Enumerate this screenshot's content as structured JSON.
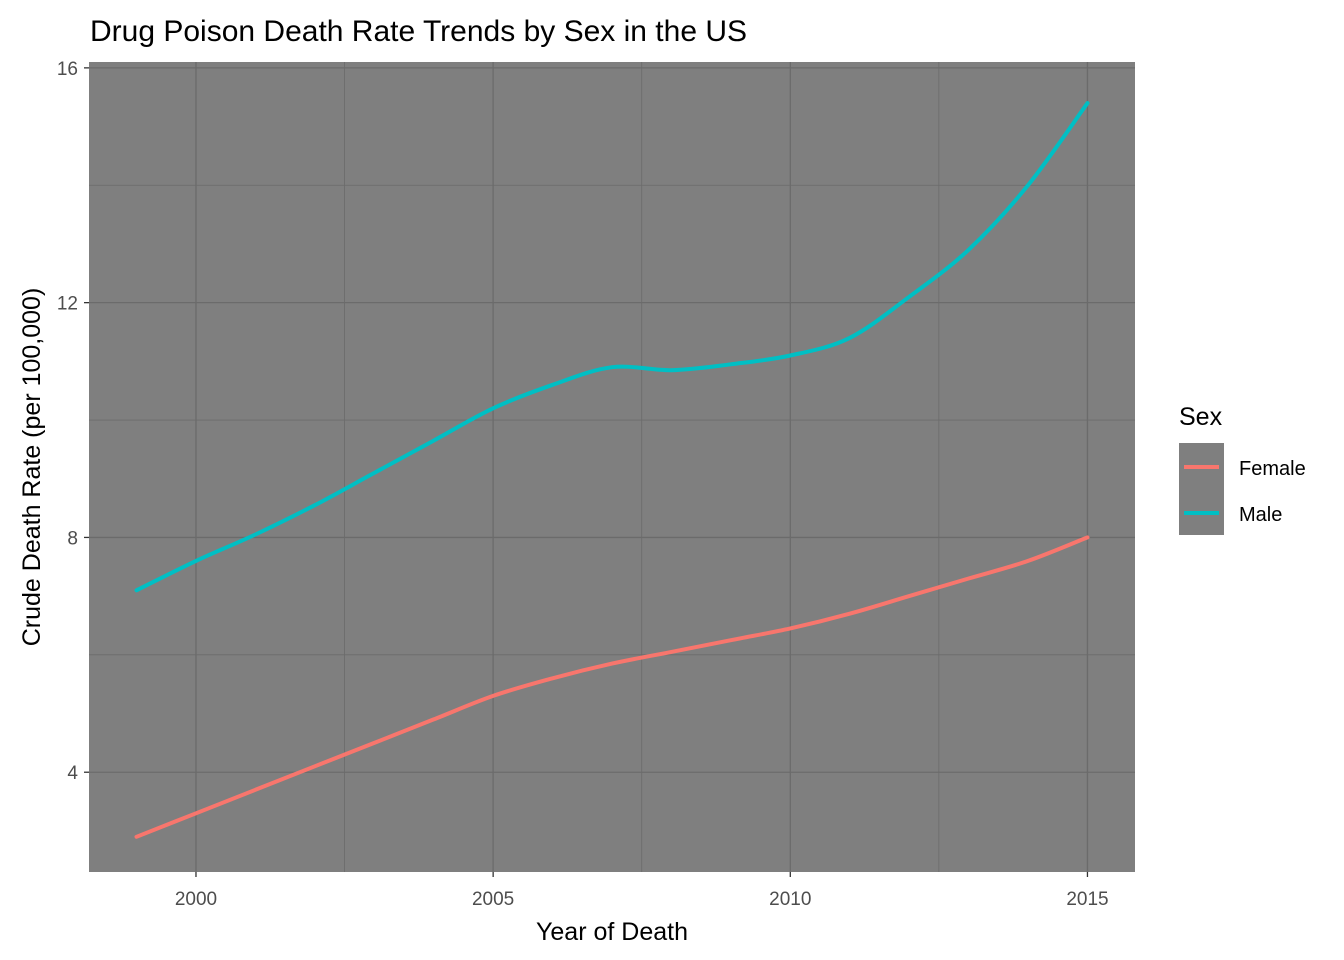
{
  "chart_data": {
    "type": "line",
    "title": "Drug Poison Death Rate Trends by Sex in the US",
    "xlabel": "Year of Death",
    "ylabel": "Crude Death Rate (per 100,000)",
    "xlim": [
      1998.2,
      2015.8
    ],
    "ylim": [
      2.3,
      16.1
    ],
    "x_ticks": [
      2000,
      2005,
      2010,
      2015
    ],
    "x_tick_labels": [
      "2000",
      "2005",
      "2010",
      "2015"
    ],
    "y_ticks": [
      4,
      8,
      12,
      16
    ],
    "y_tick_labels": [
      "4",
      "8",
      "12",
      "16"
    ],
    "grid": true,
    "panel_background": "#7f7f7f",
    "legend": {
      "title": "Sex",
      "position": "right",
      "entries": [
        "Female",
        "Male"
      ]
    },
    "x": [
      1999,
      2000,
      2001,
      2002,
      2003,
      2004,
      2005,
      2006,
      2007,
      2008,
      2009,
      2010,
      2011,
      2012,
      2013,
      2014,
      2015
    ],
    "series": [
      {
        "name": "Female",
        "color": "#f8766d",
        "values": [
          2.9,
          3.3,
          3.7,
          4.1,
          4.5,
          4.9,
          5.3,
          5.6,
          5.85,
          6.05,
          6.25,
          6.45,
          6.7,
          7.0,
          7.3,
          7.6,
          8.0
        ]
      },
      {
        "name": "Male",
        "color": "#00bfc4",
        "values": [
          7.1,
          7.6,
          8.05,
          8.55,
          9.1,
          9.65,
          10.2,
          10.6,
          10.9,
          10.85,
          10.95,
          11.1,
          11.4,
          12.1,
          12.9,
          14.0,
          15.4
        ]
      }
    ]
  }
}
